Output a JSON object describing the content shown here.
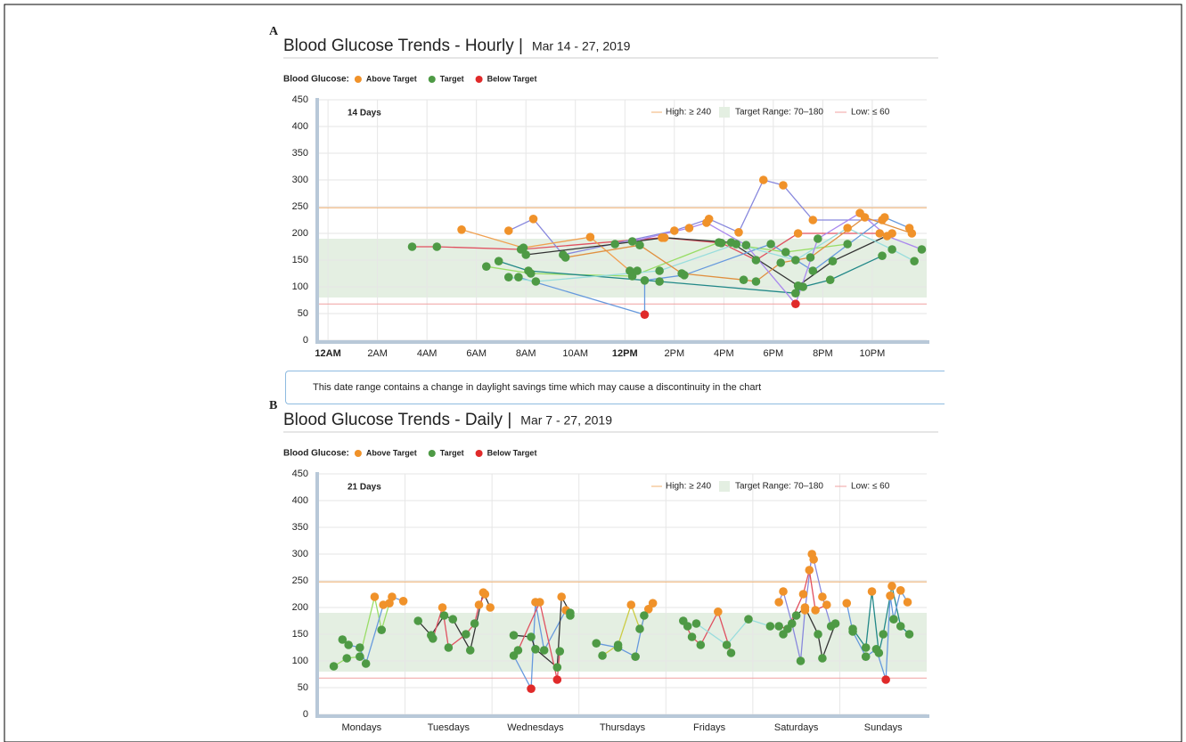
{
  "chart_data": [
    {
      "type": "line",
      "panel": "A",
      "title": "Blood Glucose Trends - Hourly |",
      "subtitle": "Mar 14 - 27, 2019",
      "legend_title": "Blood Glucose:",
      "legend": [
        {
          "name": "Above Target",
          "color": "#f0922a"
        },
        {
          "name": "Target",
          "color": "#4e9a45"
        },
        {
          "name": "Below Target",
          "color": "#e02a2a"
        }
      ],
      "period_label": "14 Days",
      "high_label": "High: ≥ 240",
      "target_label": "Target Range: 70–180",
      "low_label": "Low: ≤ 60",
      "high_line": 248,
      "target_band": [
        80,
        190
      ],
      "low_line": 68,
      "xlim": [
        -0.4,
        24.2
      ],
      "ylim": [
        0,
        450
      ],
      "xticks": [
        {
          "value": 0,
          "label": "12AM"
        },
        {
          "value": 2,
          "label": "2AM"
        },
        {
          "value": 4,
          "label": "4AM"
        },
        {
          "value": 6,
          "label": "6AM"
        },
        {
          "value": 8,
          "label": "8AM"
        },
        {
          "value": 10,
          "label": "10AM"
        },
        {
          "value": 12,
          "label": "12PM"
        },
        {
          "value": 14,
          "label": "2PM"
        },
        {
          "value": 16,
          "label": "4PM"
        },
        {
          "value": 18,
          "label": "6PM"
        },
        {
          "value": 20,
          "label": "8PM"
        },
        {
          "value": 22,
          "label": "10PM"
        }
      ],
      "yticks": [
        0,
        50,
        100,
        150,
        200,
        250,
        300,
        350,
        400,
        450
      ],
      "grid": true,
      "series": [
        {
          "color": "#e05060",
          "x": [
            3.4,
            4.4,
            7.8,
            13.5,
            15.9,
            17.3,
            19,
            22.3
          ],
          "values": [
            175,
            175,
            170,
            192,
            182,
            150,
            200,
            200
          ]
        },
        {
          "color": "#8888dd",
          "x": [
            7.3,
            8.3,
            9.5,
            14,
            15.4,
            16.6,
            17.6,
            18.4,
            19.6,
            22.4
          ],
          "values": [
            205,
            227,
            160,
            205,
            227,
            202,
            300,
            290,
            225,
            225
          ]
        },
        {
          "color": "#f0a050",
          "x": [
            5.4,
            7.9,
            10.6,
            12.2,
            12.5
          ],
          "values": [
            207,
            173,
            193,
            130,
            130
          ]
        },
        {
          "color": "#333333",
          "x": [
            8,
            11.6,
            13.6,
            16.3,
            19,
            20.4,
            22.8
          ],
          "values": [
            160,
            180,
            192,
            183,
            102,
            148,
            200
          ]
        },
        {
          "color": "#99dd66",
          "x": [
            6.4,
            8.2,
            12.3,
            15.8,
            18.5,
            21
          ],
          "values": [
            138,
            125,
            120,
            183,
            165,
            180
          ]
        },
        {
          "color": "#228888",
          "x": [
            6.9,
            8.1,
            13.4,
            18.9,
            19.2,
            20.3,
            22.4
          ],
          "values": [
            148,
            130,
            110,
            88,
            100,
            113,
            158
          ]
        },
        {
          "color": "#6699dd",
          "x": [
            7.7,
            12.8,
            12.8,
            14.4,
            17.9,
            19.6,
            22.5,
            23.5
          ],
          "values": [
            118,
            48,
            112,
            122,
            180,
            130,
            230,
            210
          ]
        },
        {
          "color": "#99dddd",
          "x": [
            7.3,
            8.4,
            13.4,
            16.5,
            18.9,
            21,
            22.8,
            23.7
          ],
          "values": [
            118,
            110,
            130,
            180,
            150,
            210,
            170,
            148
          ]
        },
        {
          "color": "#e09040",
          "x": [
            9.6,
            12.6,
            14.3,
            16.8,
            17.3,
            18.3,
            19.5,
            21.7,
            23.6
          ],
          "values": [
            155,
            178,
            125,
            113,
            110,
            145,
            155,
            230,
            200
          ]
        },
        {
          "color": "#aa88ee",
          "x": [
            12.3,
            14.6,
            15.3,
            16.9,
            18.9,
            19.8,
            21.5,
            22.6,
            24
          ],
          "values": [
            185,
            210,
            220,
            178,
            68,
            190,
            238,
            195,
            170
          ]
        }
      ]
    },
    {
      "type": "line",
      "panel": "B",
      "title": "Blood Glucose Trends - Daily |",
      "subtitle": "Mar 7 - 27, 2019",
      "legend_title": "Blood Glucose:",
      "legend": [
        {
          "name": "Above Target",
          "color": "#f0922a"
        },
        {
          "name": "Target",
          "color": "#4e9a45"
        },
        {
          "name": "Below Target",
          "color": "#e02a2a"
        }
      ],
      "period_label": "21 Days",
      "high_label": "High: ≥ 240",
      "target_label": "Target Range: 70–180",
      "low_label": "Low: ≤ 60",
      "high_line": 248,
      "target_band": [
        80,
        190
      ],
      "low_line": 68,
      "xlim": [
        0,
        7
      ],
      "ylim": [
        0,
        450
      ],
      "categories": [
        "Mondays",
        "Tuesdays",
        "Wednesdays",
        "Thursdays",
        "Fridays",
        "Saturdays",
        "Sundays"
      ],
      "yticks": [
        0,
        50,
        100,
        150,
        200,
        250,
        300,
        350,
        400,
        450
      ],
      "grid": true,
      "series": [
        {
          "color": "#99dd66",
          "x": [
            0.18,
            0.33,
            0.48,
            0.65,
            0.73,
            0.82
          ],
          "values": [
            90,
            105,
            108,
            220,
            158,
            208
          ]
        },
        {
          "color": "#6699dd",
          "x": [
            0.28,
            0.35,
            0.48,
            0.55,
            0.75,
            0.85,
            0.98
          ],
          "values": [
            140,
            130,
            125,
            95,
            205,
            220,
            212
          ]
        },
        {
          "color": "#333333",
          "x": [
            1.15,
            1.3,
            1.45,
            1.55,
            1.75,
            1.9,
            1.98
          ],
          "values": [
            175,
            148,
            185,
            178,
            120,
            228,
            200
          ]
        },
        {
          "color": "#e05060",
          "x": [
            1.32,
            1.43,
            1.5,
            1.7,
            1.8,
            1.85,
            1.92
          ],
          "values": [
            142,
            200,
            125,
            150,
            170,
            205,
            225
          ]
        },
        {
          "color": "#6699dd",
          "x": [
            2.25,
            2.45,
            2.5,
            2.6,
            2.85,
            2.9
          ],
          "values": [
            110,
            48,
            210,
            120,
            195,
            185
          ]
        },
        {
          "color": "#333333",
          "x": [
            2.25,
            2.45,
            2.5,
            2.75,
            2.8,
            2.9
          ],
          "values": [
            148,
            145,
            122,
            88,
            220,
            190
          ]
        },
        {
          "color": "#e05060",
          "x": [
            2.3,
            2.55,
            2.75,
            2.78
          ],
          "values": [
            120,
            210,
            65,
            118
          ]
        },
        {
          "color": "#cccc44",
          "x": [
            3.27,
            3.45,
            3.6,
            3.7,
            3.8
          ],
          "values": [
            110,
            130,
            205,
            160,
            197
          ]
        },
        {
          "color": "#6699dd",
          "x": [
            3.2,
            3.45,
            3.65,
            3.75,
            3.85
          ],
          "values": [
            133,
            125,
            108,
            185,
            208
          ]
        },
        {
          "color": "#e05060",
          "x": [
            4.2,
            4.3,
            4.4,
            4.6,
            4.75
          ],
          "values": [
            175,
            145,
            130,
            192,
            115
          ]
        },
        {
          "color": "#99dddd",
          "x": [
            4.25,
            4.35,
            4.7,
            4.95,
            5.2
          ],
          "values": [
            165,
            170,
            130,
            178,
            165
          ]
        },
        {
          "color": "#8888dd",
          "x": [
            5.3,
            5.35,
            5.45,
            5.55,
            5.6,
            5.68,
            5.7,
            5.8,
            5.9
          ],
          "values": [
            210,
            230,
            170,
            100,
            195,
            300,
            290,
            220,
            165
          ]
        },
        {
          "color": "#333333",
          "x": [
            5.35,
            5.5,
            5.6,
            5.75,
            5.8,
            5.95
          ],
          "values": [
            150,
            185,
            200,
            150,
            105,
            170
          ]
        },
        {
          "color": "#e05060",
          "x": [
            5.3,
            5.4,
            5.58,
            5.65,
            5.72,
            5.85
          ],
          "values": [
            165,
            160,
            225,
            270,
            195,
            205
          ]
        },
        {
          "color": "#228888",
          "x": [
            6.15,
            6.3,
            6.37,
            6.45,
            6.5,
            6.6,
            6.7,
            6.8
          ],
          "values": [
            160,
            125,
            230,
            115,
            150,
            240,
            165,
            150
          ]
        },
        {
          "color": "#6699dd",
          "x": [
            6.08,
            6.15,
            6.3,
            6.42,
            6.53,
            6.58,
            6.62,
            6.7,
            6.78
          ],
          "values": [
            208,
            155,
            108,
            122,
            65,
            222,
            178,
            232,
            210
          ]
        }
      ]
    }
  ],
  "note": "This date range contains a change in daylight savings time which may cause a discontinuity in the chart"
}
